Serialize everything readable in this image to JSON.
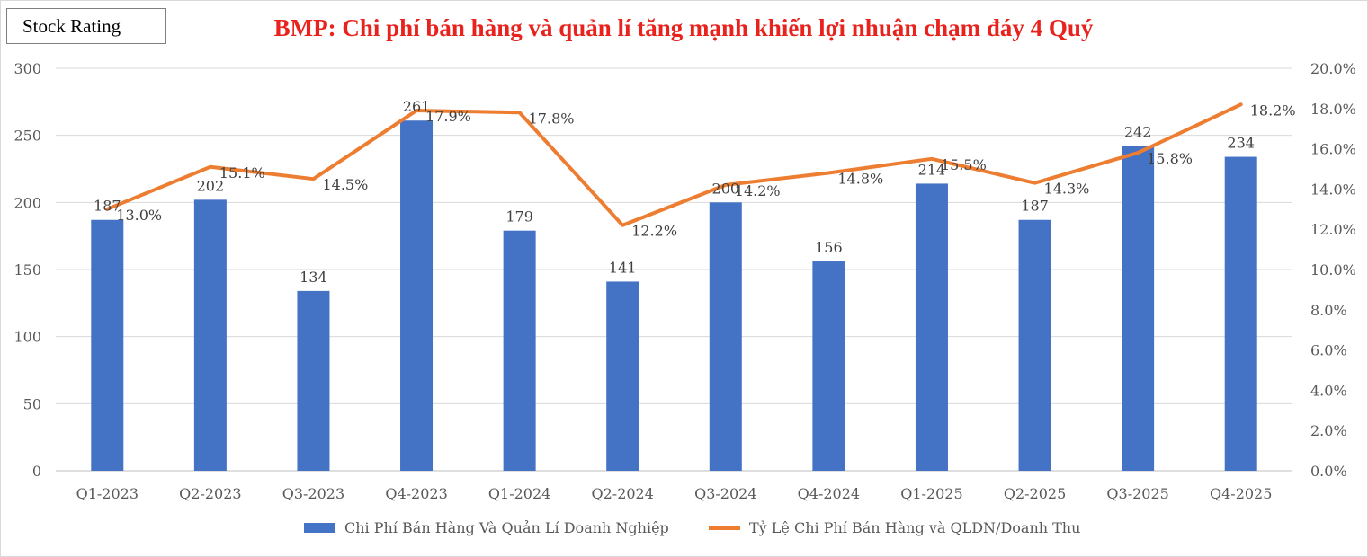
{
  "badge": "Stock Rating",
  "chart_data": {
    "type": "bar",
    "title": "BMP: Chi phí bán hàng và quản lí tăng mạnh khiến lợi nhuận chạm đáy 4 Quý",
    "categories": [
      "Q1-2023",
      "Q2-2023",
      "Q3-2023",
      "Q4-2023",
      "Q1-2024",
      "Q2-2024",
      "Q3-2024",
      "Q4-2024",
      "Q1-2025",
      "Q2-2025",
      "Q3-2025",
      "Q4-2025"
    ],
    "series": [
      {
        "name": "Chi Phí Bán Hàng Và Quản Lí Doanh Nghiệp",
        "type": "bar",
        "axis": "left",
        "color": "#4472c4",
        "values": [
          187,
          202,
          134,
          261,
          179,
          141,
          200,
          156,
          214,
          187,
          242,
          234
        ],
        "labels": [
          "187",
          "202",
          "134",
          "261",
          "179",
          "141",
          "200",
          "156",
          "214",
          "187",
          "242",
          "234"
        ]
      },
      {
        "name": "Tỷ Lệ Chi Phí Bán Hàng và QLDN/Doanh Thu",
        "type": "line",
        "axis": "right",
        "color": "#ed7d31",
        "values": [
          13.0,
          15.1,
          14.5,
          17.9,
          17.8,
          12.2,
          14.2,
          14.8,
          15.5,
          14.3,
          15.8,
          18.2
        ],
        "labels": [
          "13.0%",
          "15.1%",
          "14.5%",
          "17.9%",
          "17.8%",
          "12.2%",
          "14.2%",
          "14.8%",
          "15.5%",
          "14.3%",
          "15.8%",
          "18.2%"
        ]
      }
    ],
    "y_left": {
      "lim": [
        0,
        300
      ],
      "ticks": [
        "0",
        "50",
        "100",
        "150",
        "200",
        "250",
        "300"
      ]
    },
    "y_right": {
      "lim": [
        0,
        20
      ],
      "ticks": [
        "0.0%",
        "2.0%",
        "4.0%",
        "6.0%",
        "8.0%",
        "10.0%",
        "12.0%",
        "14.0%",
        "16.0%",
        "18.0%",
        "20.0%"
      ]
    },
    "grid": true,
    "legend": "bottom"
  }
}
